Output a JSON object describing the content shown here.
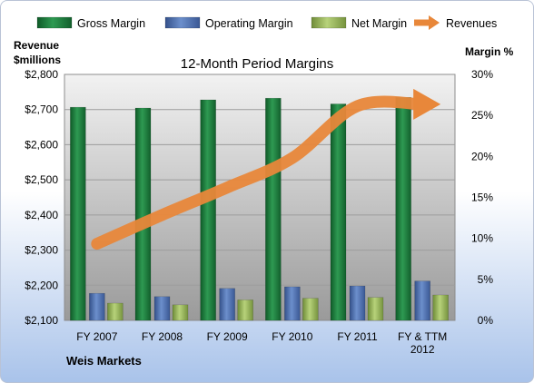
{
  "chart_data": {
    "type": "bar",
    "title": "12-Month Period Margins",
    "company": "Weis Markets",
    "y_left_label": [
      "Revenue",
      "$millions"
    ],
    "y_right_label": "Margin %",
    "categories": [
      "FY 2007",
      "FY 2008",
      "FY 2009",
      "FY 2010",
      "FY 2011",
      "FY & TTM 2012"
    ],
    "y_left_ticks": [
      "$2,100",
      "$2,200",
      "$2,300",
      "$2,400",
      "$2,500",
      "$2,600",
      "$2,700",
      "$2,800"
    ],
    "y_right_ticks": [
      "0%",
      "5%",
      "10%",
      "15%",
      "20%",
      "25%",
      "30%"
    ],
    "ylim_left": [
      2100,
      2800
    ],
    "ylim_right": [
      0,
      30
    ],
    "series": [
      {
        "name": "Gross Margin",
        "axis": "right",
        "color": "#1f7a3c",
        "values": [
          26.0,
          25.9,
          26.9,
          27.1,
          26.4,
          27.2
        ]
      },
      {
        "name": "Operating Margin",
        "axis": "right",
        "color": "#4a6fb0",
        "values": [
          3.3,
          2.9,
          3.9,
          4.1,
          4.2,
          4.8
        ]
      },
      {
        "name": "Net Margin",
        "axis": "right",
        "color": "#9ab85c",
        "values": [
          2.1,
          1.9,
          2.5,
          2.7,
          2.8,
          3.1
        ]
      },
      {
        "name": "Revenues",
        "axis": "left",
        "type": "line",
        "color": "#e8873a",
        "values": [
          2318,
          2400,
          2478,
          2562,
          2710,
          2715
        ]
      }
    ],
    "grid": true,
    "legend_position": "top"
  }
}
